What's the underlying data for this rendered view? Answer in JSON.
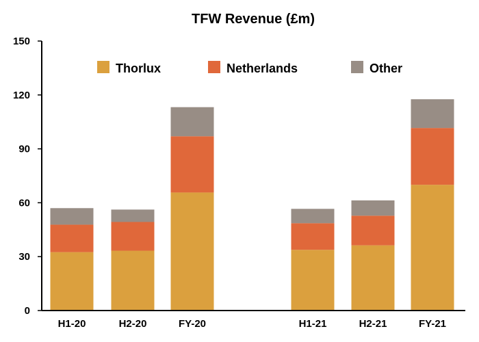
{
  "chart_data": {
    "type": "bar",
    "stacked": true,
    "title": "TFW Revenue (£m)",
    "xlabel": "",
    "ylabel": "",
    "ylim": [
      0,
      150
    ],
    "yticks": [
      0,
      30,
      60,
      90,
      120,
      150
    ],
    "grid": false,
    "legend_position": "top",
    "categories": [
      "H1-20",
      "H2-20",
      "FY-20",
      "H1-21",
      "H2-21",
      "FY-21"
    ],
    "series": [
      {
        "name": "Thorlux",
        "color": "#DBA03E",
        "values": [
          32.5,
          33.3,
          65.7,
          33.8,
          36.3,
          70.0
        ]
      },
      {
        "name": "Netherlands",
        "color": "#E0683A",
        "values": [
          15.3,
          16.0,
          31.3,
          14.8,
          16.5,
          31.6
        ]
      },
      {
        "name": "Other",
        "color": "#988D85",
        "values": [
          9.2,
          6.9,
          16.2,
          8.0,
          8.5,
          16.0
        ]
      }
    ]
  }
}
